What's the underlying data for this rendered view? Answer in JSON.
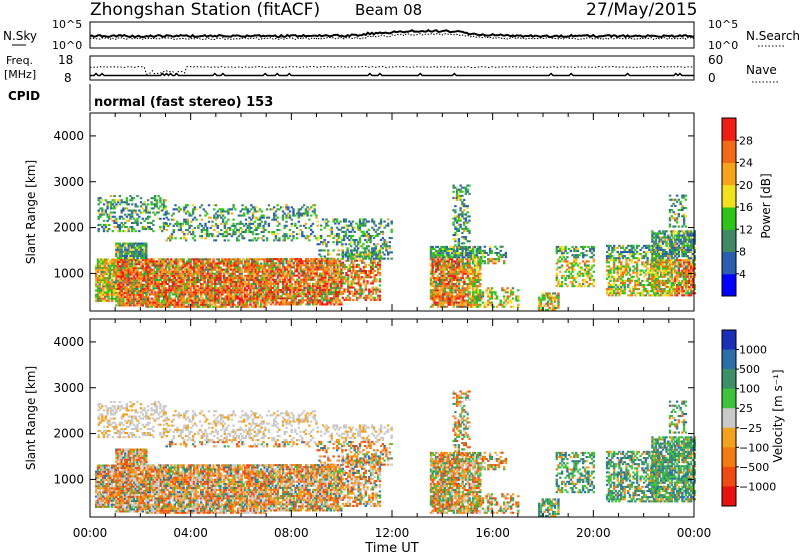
{
  "header": {
    "station": "Zhongshan Station (fitACF)",
    "beam": "Beam 08",
    "date": "27/May/2015"
  },
  "top_panel": {
    "left_label": "N.Sky",
    "right_label": "N.Search",
    "left_ticks": [
      "10^5",
      "10^0"
    ],
    "right_ticks": [
      "10^5",
      "10^0"
    ]
  },
  "freq_panel": {
    "left_label_1": "Freq.",
    "left_label_2": "[MHz]",
    "left_ticks": [
      "18",
      "8"
    ],
    "right_label": "Nave",
    "right_ticks": [
      "60",
      "0"
    ]
  },
  "cpid": {
    "label": "CPID",
    "value": "normal (fast stereo) 153"
  },
  "chart_data": [
    {
      "type": "heatmap",
      "title": "",
      "xlabel": "Time UT",
      "ylabel": "Slant Range [km]",
      "x_ticks": [
        "00:00",
        "04:00",
        "08:00",
        "12:00",
        "16:00",
        "20:00",
        "00:00"
      ],
      "xlim_hours": [
        0,
        24
      ],
      "y_ticks": [
        1000,
        2000,
        3000,
        4000
      ],
      "ylim": [
        180,
        4500
      ],
      "colorbar": {
        "label": "Power [dB]",
        "ticks": [
          "4",
          "8",
          "12",
          "16",
          "20",
          "24",
          "28"
        ],
        "range": [
          0,
          30
        ],
        "colors": [
          "#0000ff",
          "#2a5fb0",
          "#3f8a64",
          "#2ec41a",
          "#f2e21e",
          "#f4a51a",
          "#f26a16",
          "#ef1d12"
        ]
      }
    },
    {
      "type": "heatmap",
      "title": "",
      "xlabel": "Time UT",
      "ylabel": "Slant Range [km]",
      "x_ticks": [
        "00:00",
        "04:00",
        "08:00",
        "12:00",
        "16:00",
        "20:00",
        "00:00"
      ],
      "xlim_hours": [
        0,
        24
      ],
      "y_ticks": [
        1000,
        2000,
        3000,
        4000
      ],
      "ylim": [
        180,
        4500
      ],
      "colorbar": {
        "label": "Velocity [m s⁻¹]",
        "ticks": [
          "1000",
          "500",
          "100",
          "25",
          "−25",
          "−100",
          "−500",
          "−1000"
        ],
        "colors": [
          "#1a2fb8",
          "#2c6ea6",
          "#3c8f69",
          "#3fc33a",
          "#c9c9c9",
          "#f3a21d",
          "#f47a12",
          "#ef4a14",
          "#e81010"
        ]
      }
    }
  ],
  "scatter_regions": [
    {
      "t0": 0.2,
      "t1": 1.0,
      "r0": 380,
      "r1": 1300,
      "vdens": 0.85
    },
    {
      "t0": 1.0,
      "t1": 2.2,
      "r0": 280,
      "r1": 1650,
      "vdens": 0.9
    },
    {
      "t0": 2.2,
      "t1": 7.0,
      "r0": 250,
      "r1": 1300,
      "vdens": 0.85
    },
    {
      "t0": 7.0,
      "t1": 10.0,
      "r0": 300,
      "r1": 1300,
      "vdens": 0.8
    },
    {
      "t0": 10.0,
      "t1": 11.5,
      "r0": 400,
      "r1": 1500,
      "vdens": 0.55
    },
    {
      "t0": 0.3,
      "t1": 3.0,
      "r0": 1900,
      "r1": 2700,
      "vdens": 0.35
    },
    {
      "t0": 3.0,
      "t1": 9.0,
      "r0": 1700,
      "r1": 2500,
      "vdens": 0.3
    },
    {
      "t0": 9.0,
      "t1": 12.0,
      "r0": 1300,
      "r1": 2200,
      "vdens": 0.35
    },
    {
      "t0": 13.5,
      "t1": 15.5,
      "r0": 250,
      "r1": 1600,
      "vdens": 0.8
    },
    {
      "t0": 14.4,
      "t1": 15.1,
      "r0": 1500,
      "r1": 2900,
      "vdens": 0.35
    },
    {
      "t0": 15.5,
      "t1": 16.5,
      "r0": 1200,
      "r1": 1600,
      "vdens": 0.45
    },
    {
      "t0": 15.5,
      "t1": 17.0,
      "r0": 250,
      "r1": 700,
      "vdens": 0.35
    },
    {
      "t0": 17.8,
      "t1": 18.6,
      "r0": 180,
      "r1": 550,
      "vdens": 0.6
    },
    {
      "t0": 18.5,
      "t1": 20.0,
      "r0": 700,
      "r1": 1600,
      "vdens": 0.45
    },
    {
      "t0": 20.5,
      "t1": 22.5,
      "r0": 500,
      "r1": 1600,
      "vdens": 0.55
    },
    {
      "t0": 22.3,
      "t1": 24.0,
      "r0": 500,
      "r1": 1900,
      "vdens": 0.75
    },
    {
      "t0": 23.0,
      "t1": 23.7,
      "r0": 2000,
      "r1": 2700,
      "vdens": 0.4
    }
  ]
}
